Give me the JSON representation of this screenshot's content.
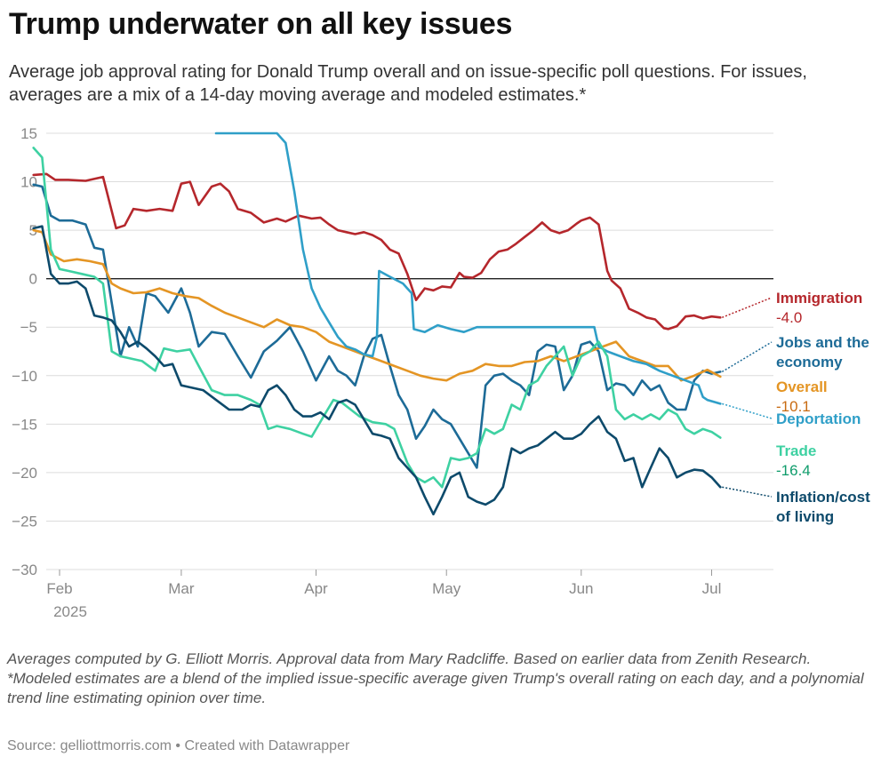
{
  "title": "Trump underwater on all key issues",
  "subtitle": "Average job approval rating for Donald Trump overall and on issue-specific poll questions. For issues, averages are a mix of a 14-day moving average and modeled estimates.*",
  "notes": [
    "Averages computed by G. Elliott Morris. Approval data from Mary Radcliffe. Based on earlier data from Zenith Research.",
    "*Modeled estimates are a blend of the implied issue-specific average given Trump's overall rating on each day, and a polynomial trend line estimating opinion over time."
  ],
  "source": "Source: gelliottmorris.com • Created with Datawrapper",
  "chart_data": {
    "type": "line",
    "title": "Trump underwater on all key issues",
    "xlabel": "",
    "ylabel": "",
    "ylim": [
      -30,
      15
    ],
    "y_ticks": [
      15,
      10,
      5,
      0,
      -5,
      -10,
      -15,
      -20,
      -25,
      -30
    ],
    "y_tick_labels": [
      "15",
      "10",
      "5",
      "0",
      "−5",
      "−10",
      "−15",
      "−20",
      "−25",
      "−30"
    ],
    "x_unit": "days since Jan 24, 2025",
    "xlim": [
      0,
      165
    ],
    "x_ticks": [
      {
        "day": 8,
        "label": "Feb",
        "sublabel": "2025"
      },
      {
        "day": 36,
        "label": "Mar",
        "sublabel": ""
      },
      {
        "day": 67,
        "label": "Apr",
        "sublabel": ""
      },
      {
        "day": 97,
        "label": "May",
        "sublabel": ""
      },
      {
        "day": 128,
        "label": "Jun",
        "sublabel": ""
      },
      {
        "day": 158,
        "label": "Jul",
        "sublabel": ""
      }
    ],
    "zero_line": 0,
    "series": [
      {
        "name": "Immigration",
        "label_lines": [
          "Immigration"
        ],
        "value_label": "-4.0",
        "color": "#b5272c",
        "value_color": "#b5272c",
        "x": [
          2,
          5,
          7,
          10,
          14,
          18,
          21,
          23,
          25,
          28,
          31,
          34,
          36,
          38,
          40,
          43,
          45,
          47,
          49,
          52,
          55,
          58,
          60,
          63,
          66,
          68,
          70,
          72,
          74,
          76,
          78,
          80,
          82,
          84,
          86,
          88,
          90,
          92,
          94,
          96,
          98,
          100,
          101,
          103,
          105,
          107,
          109,
          111,
          113,
          115,
          117,
          119,
          121,
          123,
          125,
          127,
          128,
          130,
          132,
          134,
          135,
          137,
          139,
          141,
          143,
          145,
          147,
          148,
          150,
          152,
          154,
          156,
          158,
          160
        ],
        "values": [
          10.7,
          10.8,
          10.2,
          10.2,
          10.1,
          10.5,
          5.2,
          5.5,
          7.2,
          7.0,
          7.2,
          7.0,
          9.8,
          10.0,
          7.6,
          9.5,
          9.8,
          9.0,
          7.2,
          6.8,
          5.8,
          6.2,
          5.9,
          6.5,
          6.2,
          6.3,
          5.6,
          5.0,
          4.8,
          4.6,
          4.8,
          4.5,
          4.0,
          3.0,
          2.6,
          0.5,
          -2.2,
          -1.0,
          -1.2,
          -0.8,
          -0.9,
          0.6,
          0.2,
          0.1,
          0.6,
          2.0,
          2.8,
          3.0,
          3.6,
          4.3,
          5.0,
          5.8,
          5.0,
          4.7,
          5.0,
          5.7,
          6.0,
          6.3,
          5.6,
          0.8,
          -0.2,
          -1.0,
          -3.1,
          -3.5,
          -4.0,
          -4.2,
          -5.1,
          -5.2,
          -4.9,
          -3.9,
          -3.8,
          -4.1,
          -3.9,
          -4.0
        ]
      },
      {
        "name": "Jobs and the economy",
        "label_lines": [
          "Jobs and the",
          "economy"
        ],
        "value_label": "",
        "color": "#1d6b97",
        "value_color": "#1d6b97",
        "x": [
          2,
          4,
          6,
          8,
          11,
          14,
          16,
          18,
          20,
          22,
          24,
          26,
          28,
          30,
          33,
          36,
          38,
          40,
          43,
          46,
          49,
          52,
          55,
          58,
          61,
          64,
          67,
          70,
          72,
          74,
          76,
          78,
          80,
          82,
          84,
          86,
          88,
          90,
          92,
          94,
          96,
          98,
          100,
          102,
          104,
          106,
          108,
          110,
          112,
          114,
          116,
          118,
          120,
          122,
          124,
          126,
          128,
          130,
          132,
          134,
          136,
          138,
          140,
          142,
          144,
          146,
          148,
          150,
          152,
          154,
          156,
          158,
          160
        ],
        "values": [
          9.7,
          9.5,
          6.5,
          6.0,
          6.0,
          5.6,
          3.2,
          3.0,
          -2.5,
          -8.0,
          -5.0,
          -7.0,
          -1.5,
          -1.8,
          -3.5,
          -1.0,
          -3.5,
          -7.0,
          -5.5,
          -5.7,
          -8.0,
          -10.2,
          -7.5,
          -6.4,
          -5.0,
          -7.5,
          -10.5,
          -8.0,
          -9.5,
          -10.0,
          -11.0,
          -8.0,
          -6.2,
          -5.8,
          -9.0,
          -12.0,
          -13.5,
          -16.5,
          -15.2,
          -13.5,
          -14.5,
          -15.0,
          -16.5,
          -18.0,
          -19.5,
          -11.0,
          -10.0,
          -9.8,
          -10.5,
          -11.0,
          -12.0,
          -7.5,
          -6.8,
          -7.0,
          -11.5,
          -10.0,
          -6.8,
          -6.5,
          -7.5,
          -11.5,
          -10.8,
          -11.0,
          -12.0,
          -10.5,
          -11.5,
          -11.0,
          -12.8,
          -13.5,
          -13.5,
          -10.5,
          -9.5,
          -9.8,
          -9.6
        ]
      },
      {
        "name": "Overall",
        "label_lines": [
          "Overall"
        ],
        "value_label": "-10.1",
        "color": "#e49524",
        "value_color": "#c86b12",
        "x": [
          2,
          4,
          6,
          9,
          12,
          15,
          18,
          20,
          22,
          25,
          28,
          31,
          34,
          37,
          40,
          43,
          46,
          49,
          52,
          55,
          58,
          61,
          64,
          67,
          70,
          73,
          76,
          79,
          82,
          85,
          88,
          91,
          94,
          97,
          100,
          103,
          106,
          109,
          112,
          115,
          118,
          121,
          124,
          127,
          130,
          133,
          136,
          139,
          142,
          145,
          148,
          151,
          154,
          157,
          160
        ],
        "values": [
          5.0,
          4.8,
          2.5,
          1.8,
          2.0,
          1.8,
          1.5,
          -0.5,
          -1.0,
          -1.5,
          -1.4,
          -1.0,
          -1.5,
          -1.8,
          -2.0,
          -2.8,
          -3.5,
          -4.0,
          -4.5,
          -5.0,
          -4.2,
          -4.8,
          -5.0,
          -5.5,
          -6.5,
          -7.0,
          -7.5,
          -8.0,
          -8.5,
          -9.0,
          -9.5,
          -10.0,
          -10.3,
          -10.5,
          -9.8,
          -9.5,
          -8.8,
          -9.0,
          -9.0,
          -8.6,
          -8.5,
          -8.0,
          -8.5,
          -8.0,
          -7.5,
          -7.0,
          -6.5,
          -8.0,
          -8.5,
          -9.0,
          -9.0,
          -10.5,
          -10.0,
          -9.4,
          -10.1
        ]
      },
      {
        "name": "Deportation",
        "label_lines": [
          "Deportation"
        ],
        "value_label": "",
        "color": "#2f9fc8",
        "value_color": "#2f9fc8",
        "x": [
          44,
          52,
          58,
          60,
          62,
          64,
          66,
          68,
          70,
          72,
          74,
          76,
          78,
          80,
          81,
          81.5,
          84,
          87,
          88,
          89,
          89.5,
          92,
          95,
          98,
          101,
          104,
          107,
          110,
          113,
          116,
          119,
          122,
          125,
          128,
          131,
          132,
          134,
          137,
          140,
          143,
          146,
          149,
          152,
          155,
          156,
          157,
          160
        ],
        "values": [
          15.0,
          15.0,
          15.0,
          14.0,
          9.0,
          3.0,
          -1.0,
          -3.0,
          -4.5,
          -6.0,
          -7.0,
          -7.3,
          -7.8,
          -8.0,
          -6.0,
          0.8,
          0.2,
          -0.5,
          -1.0,
          -1.5,
          -5.2,
          -5.5,
          -4.8,
          -5.2,
          -5.5,
          -5.0,
          -5.0,
          -5.0,
          -5.0,
          -5.0,
          -5.0,
          -5.0,
          -5.0,
          -5.0,
          -5.0,
          -7.0,
          -7.5,
          -8.0,
          -8.5,
          -8.8,
          -9.5,
          -10.0,
          -10.5,
          -11.0,
          -12.2,
          -12.5,
          -12.9
        ]
      },
      {
        "name": "Trade",
        "label_lines": [
          "Trade"
        ],
        "value_label": "-16.4",
        "color": "#3ed1a2",
        "value_color": "#0f9c6b",
        "x": [
          2,
          4,
          6,
          8,
          10,
          13,
          16,
          18,
          20,
          22,
          24,
          27,
          30,
          32,
          35,
          38,
          40,
          43,
          46,
          49,
          52,
          54,
          56,
          58,
          61,
          64,
          66,
          69,
          71,
          73,
          75,
          77,
          80,
          83,
          85,
          88,
          90,
          92,
          94,
          96,
          98,
          100,
          102,
          104,
          106,
          108,
          110,
          112,
          114,
          116,
          118,
          120,
          122,
          124,
          126,
          128,
          130,
          132,
          134,
          136,
          138,
          140,
          142,
          144,
          146,
          148,
          150,
          152,
          154,
          156,
          158,
          160
        ],
        "values": [
          13.5,
          12.5,
          3.0,
          1.0,
          0.8,
          0.5,
          0.2,
          -0.5,
          -7.5,
          -8.0,
          -8.2,
          -8.5,
          -9.5,
          -7.2,
          -7.5,
          -7.3,
          -9.0,
          -11.5,
          -12.0,
          -12.0,
          -12.5,
          -13.0,
          -15.5,
          -15.2,
          -15.5,
          -16.0,
          -16.3,
          -14.0,
          -12.5,
          -12.8,
          -13.5,
          -14.2,
          -14.8,
          -15.0,
          -15.5,
          -19.0,
          -20.5,
          -21.0,
          -20.5,
          -21.5,
          -18.5,
          -18.7,
          -18.5,
          -18.0,
          -15.5,
          -16.0,
          -15.5,
          -13.0,
          -13.5,
          -11.0,
          -10.5,
          -9.0,
          -8.0,
          -7.0,
          -10.0,
          -8.0,
          -7.5,
          -6.5,
          -8.0,
          -13.5,
          -14.5,
          -14.0,
          -14.5,
          -14.0,
          -14.5,
          -13.5,
          -14.0,
          -15.5,
          -16.0,
          -15.5,
          -15.8,
          -16.4
        ]
      },
      {
        "name": "Inflation/cost of living",
        "label_lines": [
          "Inflation/cost",
          "of living"
        ],
        "value_label": "",
        "color": "#0d4a6b",
        "value_color": "#0d4a6b",
        "x": [
          2,
          4,
          6,
          8,
          10,
          12,
          14,
          16,
          18,
          20,
          22,
          24,
          26,
          28,
          30,
          32,
          34,
          36,
          38,
          41,
          44,
          47,
          50,
          52,
          54,
          56,
          58,
          60,
          62,
          64,
          66,
          68,
          70,
          72,
          74,
          76,
          78,
          80,
          82,
          84,
          86,
          88,
          90,
          92,
          94,
          96,
          98,
          100,
          102,
          104,
          106,
          108,
          110,
          112,
          114,
          116,
          118,
          120,
          122,
          124,
          126,
          128,
          130,
          132,
          134,
          136,
          138,
          140,
          142,
          144,
          146,
          148,
          150,
          152,
          154,
          156,
          158,
          160
        ],
        "values": [
          5.2,
          5.4,
          0.5,
          -0.5,
          -0.5,
          -0.3,
          -1.0,
          -3.8,
          -4.0,
          -4.3,
          -5.5,
          -7.0,
          -6.5,
          -7.2,
          -8.0,
          -9.0,
          -8.8,
          -11.0,
          -11.2,
          -11.5,
          -12.5,
          -13.5,
          -13.5,
          -13.0,
          -13.2,
          -11.5,
          -11.0,
          -12.0,
          -13.5,
          -14.2,
          -14.2,
          -13.8,
          -14.5,
          -12.8,
          -12.5,
          -13.0,
          -14.5,
          -16.0,
          -16.2,
          -16.5,
          -18.5,
          -19.5,
          -20.5,
          -22.5,
          -24.3,
          -22.5,
          -20.5,
          -20.0,
          -22.5,
          -23.0,
          -23.3,
          -22.8,
          -21.5,
          -17.5,
          -18.0,
          -17.5,
          -17.2,
          -16.5,
          -15.8,
          -16.5,
          -16.5,
          -16.0,
          -15.0,
          -14.2,
          -15.8,
          -16.5,
          -18.8,
          -18.5,
          -21.5,
          -19.5,
          -17.5,
          -18.5,
          -20.5,
          -20.0,
          -19.7,
          -19.8,
          -20.5,
          -21.5
        ]
      }
    ]
  }
}
